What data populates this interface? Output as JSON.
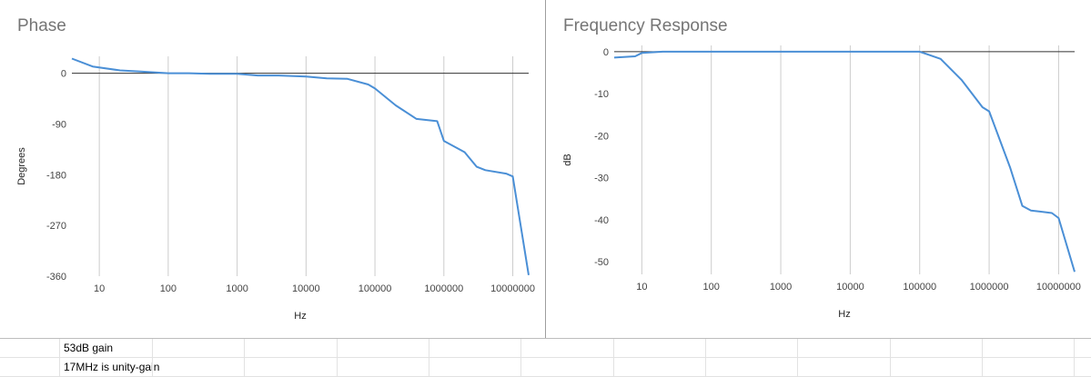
{
  "chart_data": [
    {
      "type": "line",
      "title": "Phase",
      "xlabel": "Hz",
      "ylabel": "Degrees",
      "x_scale": "log",
      "xlim": [
        4,
        17000000
      ],
      "ylim": [
        -360,
        30
      ],
      "x_ticks": [
        {
          "value": 10,
          "label": "10"
        },
        {
          "value": 100,
          "label": "100"
        },
        {
          "value": 1000,
          "label": "1000"
        },
        {
          "value": 10000,
          "label": "10000"
        },
        {
          "value": 100000,
          "label": "100000"
        },
        {
          "value": 1000000,
          "label": "1000000"
        },
        {
          "value": 10000000,
          "label": "10000000"
        }
      ],
      "y_ticks": [
        {
          "value": 0,
          "label": "0"
        },
        {
          "value": -90,
          "label": "-90"
        },
        {
          "value": -180,
          "label": "-180"
        },
        {
          "value": -270,
          "label": "-270"
        },
        {
          "value": -360,
          "label": "-360"
        }
      ],
      "baseline": 0,
      "grid": "vertical",
      "color": "#4a8fd6",
      "series": [
        {
          "x": [
            4,
            8,
            20,
            40,
            100,
            200,
            400,
            1000,
            2000,
            4000,
            10000,
            20000,
            40000,
            80000,
            100000,
            200000,
            400000,
            800000,
            1000000,
            2000000,
            3000000,
            4000000,
            8000000,
            10000000,
            17000000
          ],
          "y": [
            26,
            12,
            5,
            3,
            0,
            0,
            -1,
            -1,
            -4,
            -4,
            -6,
            -9,
            -10,
            -20,
            -27,
            -57,
            -81,
            -85,
            -120,
            -140,
            -166,
            -172,
            -178,
            -183,
            -358
          ]
        }
      ]
    },
    {
      "type": "line",
      "title": "Frequency Response",
      "xlabel": "Hz",
      "ylabel": "dB",
      "x_scale": "log",
      "xlim": [
        4,
        17000000
      ],
      "ylim": [
        -53,
        1.5
      ],
      "x_ticks": [
        {
          "value": 10,
          "label": "10"
        },
        {
          "value": 100,
          "label": "100"
        },
        {
          "value": 1000,
          "label": "1000"
        },
        {
          "value": 10000,
          "label": "10000"
        },
        {
          "value": 100000,
          "label": "100000"
        },
        {
          "value": 1000000,
          "label": "1000000"
        },
        {
          "value": 10000000,
          "label": "10000000"
        }
      ],
      "y_ticks": [
        {
          "value": 0,
          "label": "0"
        },
        {
          "value": -10,
          "label": "-10"
        },
        {
          "value": -20,
          "label": "-20"
        },
        {
          "value": -30,
          "label": "-30"
        },
        {
          "value": -40,
          "label": "-40"
        },
        {
          "value": -50,
          "label": "-50"
        }
      ],
      "baseline": 0,
      "grid": "vertical",
      "color": "#4a8fd6",
      "series": [
        {
          "x": [
            4,
            8,
            10,
            20,
            100,
            1000,
            10000,
            100000,
            200000,
            400000,
            800000,
            1000000,
            2000000,
            3000000,
            4000000,
            8000000,
            10000000,
            17000000
          ],
          "y": [
            -1.4,
            -1.1,
            -0.3,
            0,
            0,
            0,
            0,
            0,
            -1.7,
            -6.7,
            -13.2,
            -14.2,
            -27.5,
            -36.7,
            -37.8,
            -38.4,
            -39.6,
            -52.4
          ]
        }
      ]
    }
  ],
  "sheet": {
    "rows": [
      "53dB gain",
      "17MHz is unity-gain"
    ]
  }
}
